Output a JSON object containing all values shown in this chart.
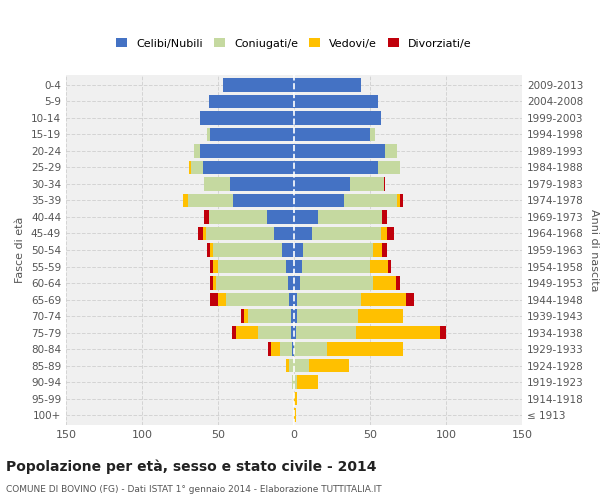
{
  "age_groups": [
    "100+",
    "95-99",
    "90-94",
    "85-89",
    "80-84",
    "75-79",
    "70-74",
    "65-69",
    "60-64",
    "55-59",
    "50-54",
    "45-49",
    "40-44",
    "35-39",
    "30-34",
    "25-29",
    "20-24",
    "15-19",
    "10-14",
    "5-9",
    "0-4"
  ],
  "birth_years": [
    "≤ 1913",
    "1914-1918",
    "1919-1923",
    "1924-1928",
    "1929-1933",
    "1934-1938",
    "1939-1943",
    "1944-1948",
    "1949-1953",
    "1954-1958",
    "1959-1963",
    "1964-1968",
    "1969-1973",
    "1974-1978",
    "1979-1983",
    "1984-1988",
    "1989-1993",
    "1994-1998",
    "1999-2003",
    "2004-2008",
    "2009-2013"
  ],
  "male_celibi": [
    0,
    0,
    0,
    0,
    1,
    2,
    2,
    3,
    4,
    5,
    8,
    13,
    18,
    40,
    42,
    60,
    62,
    55,
    62,
    56,
    47
  ],
  "male_coniugati": [
    0,
    0,
    1,
    3,
    8,
    22,
    28,
    42,
    47,
    45,
    45,
    45,
    38,
    30,
    17,
    8,
    4,
    2,
    0,
    0,
    0
  ],
  "male_vedovi": [
    0,
    0,
    0,
    2,
    6,
    14,
    3,
    5,
    2,
    3,
    2,
    2,
    0,
    3,
    0,
    1,
    0,
    0,
    0,
    0,
    0
  ],
  "male_divorziati": [
    0,
    0,
    0,
    0,
    2,
    3,
    2,
    5,
    2,
    2,
    2,
    3,
    3,
    0,
    0,
    0,
    0,
    0,
    0,
    0,
    0
  ],
  "female_celibi": [
    0,
    0,
    0,
    0,
    0,
    1,
    2,
    2,
    4,
    5,
    6,
    12,
    16,
    33,
    37,
    55,
    60,
    50,
    57,
    55,
    44
  ],
  "female_coniugati": [
    0,
    0,
    2,
    10,
    22,
    40,
    40,
    42,
    48,
    45,
    46,
    45,
    42,
    35,
    22,
    15,
    8,
    3,
    0,
    0,
    0
  ],
  "female_vedovi": [
    1,
    2,
    14,
    26,
    50,
    55,
    30,
    30,
    15,
    12,
    6,
    4,
    0,
    2,
    0,
    0,
    0,
    0,
    0,
    0,
    0
  ],
  "female_divorziati": [
    0,
    0,
    0,
    0,
    0,
    4,
    0,
    5,
    3,
    2,
    3,
    5,
    3,
    2,
    1,
    0,
    0,
    0,
    0,
    0,
    0
  ],
  "color_celibi": "#4472c4",
  "color_coniugati": "#c5d9a0",
  "color_vedovi": "#ffc000",
  "color_divorziati": "#c0000b",
  "title": "Popolazione per età, sesso e stato civile - 2014",
  "subtitle": "COMUNE DI BOVINO (FG) - Dati ISTAT 1° gennaio 2014 - Elaborazione TUTTITALIA.IT",
  "ylabel_left": "Fasce di età",
  "ylabel_right": "Anni di nascita",
  "xlim": 150,
  "bg_color": "#f0f0f0",
  "grid_color": "#cccccc"
}
